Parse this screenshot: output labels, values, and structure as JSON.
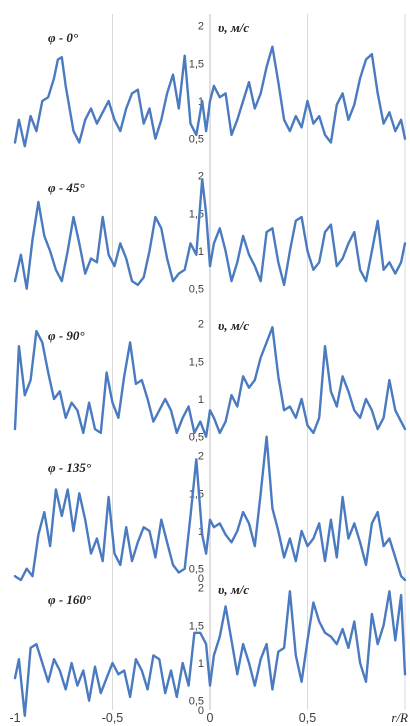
{
  "chart_data": {
    "type": "line",
    "x_range": [
      -1,
      1
    ],
    "x_ticks": [
      "-1",
      "-0,5",
      "0",
      "0,5"
    ],
    "x_label": "r/R",
    "y_range": [
      0.5,
      2
    ],
    "y_unit_label": "υ, м/с",
    "panels": [
      {
        "label": "φ - 0°",
        "show_unit": true,
        "y_ticks": [
          "2",
          "1,5",
          "1",
          "0,5"
        ],
        "x": [
          -1,
          -0.98,
          -0.95,
          -0.92,
          -0.89,
          -0.86,
          -0.83,
          -0.8,
          -0.78,
          -0.76,
          -0.74,
          -0.72,
          -0.7,
          -0.67,
          -0.64,
          -0.61,
          -0.58,
          -0.55,
          -0.52,
          -0.49,
          -0.46,
          -0.43,
          -0.4,
          -0.37,
          -0.34,
          -0.31,
          -0.28,
          -0.25,
          -0.22,
          -0.19,
          -0.16,
          -0.13,
          -0.1,
          -0.07,
          -0.04,
          -0.02,
          0,
          0.02,
          0.05,
          0.08,
          0.11,
          0.14,
          0.17,
          0.2,
          0.23,
          0.26,
          0.29,
          0.32,
          0.35,
          0.38,
          0.41,
          0.44,
          0.47,
          0.5,
          0.53,
          0.56,
          0.59,
          0.62,
          0.65,
          0.68,
          0.71,
          0.74,
          0.77,
          0.8,
          0.83,
          0.86,
          0.89,
          0.92,
          0.95,
          0.98,
          1
        ],
        "y": [
          0.45,
          0.75,
          0.4,
          0.8,
          0.6,
          1.0,
          1.05,
          1.3,
          1.55,
          1.58,
          1.2,
          0.9,
          0.6,
          0.45,
          0.75,
          0.9,
          0.7,
          0.85,
          1.0,
          0.75,
          0.6,
          0.9,
          1.1,
          1.15,
          0.7,
          0.9,
          0.5,
          0.75,
          1.1,
          1.35,
          0.9,
          1.6,
          0.7,
          0.55,
          1.0,
          0.6,
          1.0,
          1.2,
          1.05,
          1.1,
          0.55,
          0.75,
          1.0,
          1.25,
          0.9,
          1.1,
          1.45,
          1.72,
          1.25,
          0.75,
          0.6,
          0.8,
          0.65,
          1.0,
          0.7,
          0.8,
          0.55,
          0.45,
          0.95,
          1.1,
          0.75,
          0.95,
          1.3,
          1.55,
          1.62,
          1.1,
          0.7,
          0.85,
          0.6,
          0.75,
          0.5
        ]
      },
      {
        "label": "φ - 45°",
        "show_unit": false,
        "y_ticks": [
          "2",
          "1,5",
          "1",
          "0,5"
        ],
        "x": [
          -1,
          -0.97,
          -0.94,
          -0.91,
          -0.88,
          -0.85,
          -0.82,
          -0.79,
          -0.76,
          -0.73,
          -0.7,
          -0.67,
          -0.64,
          -0.61,
          -0.58,
          -0.55,
          -0.52,
          -0.49,
          -0.46,
          -0.43,
          -0.4,
          -0.37,
          -0.34,
          -0.31,
          -0.28,
          -0.25,
          -0.22,
          -0.19,
          -0.16,
          -0.13,
          -0.1,
          -0.07,
          -0.04,
          -0.02,
          0,
          0.02,
          0.05,
          0.08,
          0.11,
          0.14,
          0.17,
          0.2,
          0.23,
          0.26,
          0.29,
          0.32,
          0.35,
          0.38,
          0.41,
          0.44,
          0.47,
          0.5,
          0.53,
          0.56,
          0.59,
          0.62,
          0.65,
          0.68,
          0.71,
          0.74,
          0.77,
          0.8,
          0.83,
          0.86,
          0.89,
          0.92,
          0.95,
          0.98,
          1
        ],
        "y": [
          0.6,
          0.95,
          0.5,
          1.15,
          1.65,
          1.2,
          1.0,
          0.75,
          0.6,
          1.0,
          1.45,
          1.1,
          0.7,
          0.9,
          0.85,
          1.45,
          0.95,
          0.8,
          1.1,
          0.9,
          0.6,
          0.55,
          0.65,
          1.0,
          1.45,
          1.3,
          0.9,
          0.6,
          0.7,
          0.75,
          1.1,
          0.95,
          1.95,
          1.5,
          0.8,
          1.1,
          1.3,
          1.0,
          0.6,
          0.85,
          1.2,
          0.95,
          0.8,
          0.6,
          1.25,
          1.3,
          0.85,
          0.55,
          1.0,
          1.4,
          1.45,
          1.0,
          0.75,
          0.85,
          1.25,
          1.35,
          0.8,
          0.9,
          1.1,
          1.25,
          0.75,
          0.6,
          1.0,
          1.4,
          0.75,
          0.85,
          0.7,
          0.85,
          1.1
        ]
      },
      {
        "label": "φ - 90°",
        "show_unit": true,
        "y_ticks": [
          "2",
          "1,5",
          "1",
          "0,5"
        ],
        "x": [
          -1,
          -0.98,
          -0.95,
          -0.92,
          -0.89,
          -0.86,
          -0.83,
          -0.8,
          -0.77,
          -0.74,
          -0.71,
          -0.68,
          -0.65,
          -0.62,
          -0.59,
          -0.56,
          -0.53,
          -0.5,
          -0.47,
          -0.44,
          -0.41,
          -0.38,
          -0.35,
          -0.32,
          -0.29,
          -0.26,
          -0.23,
          -0.2,
          -0.17,
          -0.14,
          -0.11,
          -0.08,
          -0.05,
          -0.02,
          0,
          0.02,
          0.05,
          0.08,
          0.11,
          0.14,
          0.17,
          0.2,
          0.23,
          0.26,
          0.29,
          0.32,
          0.35,
          0.38,
          0.41,
          0.44,
          0.47,
          0.5,
          0.53,
          0.56,
          0.59,
          0.62,
          0.65,
          0.68,
          0.71,
          0.74,
          0.77,
          0.8,
          0.83,
          0.86,
          0.89,
          0.92,
          0.95,
          0.98,
          1
        ],
        "y": [
          0.6,
          1.7,
          1.05,
          1.25,
          1.9,
          1.75,
          1.35,
          1.0,
          1.1,
          0.75,
          0.95,
          0.85,
          0.55,
          0.95,
          0.6,
          0.55,
          1.35,
          0.95,
          0.75,
          1.3,
          1.75,
          1.2,
          1.25,
          1.0,
          0.7,
          0.85,
          1.0,
          0.85,
          0.55,
          0.75,
          0.9,
          0.55,
          0.7,
          0.5,
          0.85,
          0.75,
          0.55,
          0.7,
          1.05,
          0.9,
          1.3,
          1.15,
          1.25,
          1.55,
          1.75,
          1.95,
          1.3,
          0.85,
          0.9,
          0.75,
          1.0,
          0.65,
          0.55,
          0.75,
          1.7,
          1.1,
          0.9,
          1.3,
          1.1,
          0.85,
          0.75,
          1.0,
          0.85,
          0.6,
          0.75,
          1.25,
          0.85,
          0.7,
          0.6
        ]
      },
      {
        "label": "φ - 135°",
        "show_unit": false,
        "y_ticks": [
          "2",
          "1,5",
          "1",
          "0,5",
          "0"
        ],
        "x": [
          -1,
          -0.97,
          -0.94,
          -0.91,
          -0.88,
          -0.85,
          -0.82,
          -0.79,
          -0.76,
          -0.73,
          -0.7,
          -0.67,
          -0.64,
          -0.61,
          -0.58,
          -0.55,
          -0.52,
          -0.49,
          -0.46,
          -0.43,
          -0.4,
          -0.37,
          -0.34,
          -0.31,
          -0.28,
          -0.25,
          -0.22,
          -0.19,
          -0.16,
          -0.13,
          -0.1,
          -0.07,
          -0.04,
          -0.02,
          0,
          0.02,
          0.05,
          0.08,
          0.11,
          0.14,
          0.17,
          0.2,
          0.23,
          0.26,
          0.29,
          0.32,
          0.35,
          0.38,
          0.41,
          0.44,
          0.47,
          0.5,
          0.53,
          0.56,
          0.59,
          0.62,
          0.65,
          0.68,
          0.71,
          0.74,
          0.77,
          0.8,
          0.83,
          0.86,
          0.89,
          0.92,
          0.95,
          0.98,
          1
        ],
        "y": [
          0.4,
          0.35,
          0.5,
          0.4,
          0.95,
          1.25,
          0.8,
          1.55,
          1.2,
          1.55,
          1.0,
          1.5,
          1.15,
          0.7,
          0.9,
          0.6,
          1.45,
          0.7,
          0.55,
          1.05,
          0.6,
          0.85,
          1.05,
          1.0,
          0.65,
          1.15,
          0.85,
          0.55,
          0.45,
          0.5,
          1.2,
          1.95,
          0.95,
          0.7,
          1.15,
          1.05,
          1.1,
          0.95,
          0.85,
          1.0,
          1.25,
          1.1,
          0.8,
          1.5,
          2.25,
          1.3,
          1.0,
          0.65,
          0.9,
          0.6,
          1.0,
          0.8,
          0.9,
          1.1,
          0.6,
          1.15,
          0.65,
          1.45,
          0.9,
          1.1,
          0.85,
          0.55,
          1.1,
          1.25,
          0.8,
          0.9,
          0.65,
          0.4,
          0.35
        ]
      },
      {
        "label": "φ - 160°",
        "show_unit": true,
        "y_ticks": [
          "2",
          "1,5",
          "1",
          "0,5",
          "0"
        ],
        "x": [
          -1,
          -0.98,
          -0.95,
          -0.92,
          -0.89,
          -0.86,
          -0.83,
          -0.8,
          -0.77,
          -0.74,
          -0.71,
          -0.68,
          -0.65,
          -0.62,
          -0.59,
          -0.56,
          -0.53,
          -0.5,
          -0.47,
          -0.44,
          -0.41,
          -0.38,
          -0.35,
          -0.32,
          -0.29,
          -0.26,
          -0.23,
          -0.2,
          -0.17,
          -0.14,
          -0.11,
          -0.08,
          -0.05,
          -0.02,
          0,
          0.02,
          0.05,
          0.08,
          0.11,
          0.14,
          0.17,
          0.2,
          0.23,
          0.26,
          0.29,
          0.32,
          0.35,
          0.38,
          0.41,
          0.44,
          0.47,
          0.5,
          0.53,
          0.56,
          0.59,
          0.62,
          0.65,
          0.68,
          0.71,
          0.74,
          0.77,
          0.8,
          0.83,
          0.86,
          0.89,
          0.92,
          0.95,
          0.98,
          1
        ],
        "y": [
          0.8,
          1.05,
          0.3,
          1.2,
          1.25,
          1.0,
          0.75,
          1.05,
          0.9,
          0.65,
          1.0,
          0.7,
          0.9,
          0.5,
          0.95,
          0.6,
          0.8,
          1.0,
          0.85,
          0.9,
          0.55,
          1.05,
          0.9,
          0.65,
          1.1,
          1.05,
          0.6,
          0.9,
          0.55,
          1.0,
          0.7,
          1.4,
          1.4,
          1.25,
          0.7,
          1.1,
          1.35,
          1.75,
          1.3,
          0.85,
          1.25,
          1.0,
          0.7,
          1.05,
          1.25,
          0.65,
          1.15,
          1.2,
          1.95,
          1.1,
          0.75,
          1.3,
          1.8,
          1.55,
          1.4,
          1.35,
          1.25,
          1.45,
          1.2,
          1.55,
          1.0,
          0.75,
          1.65,
          1.25,
          1.5,
          1.95,
          1.3,
          1.9,
          0.85
        ]
      }
    ]
  }
}
